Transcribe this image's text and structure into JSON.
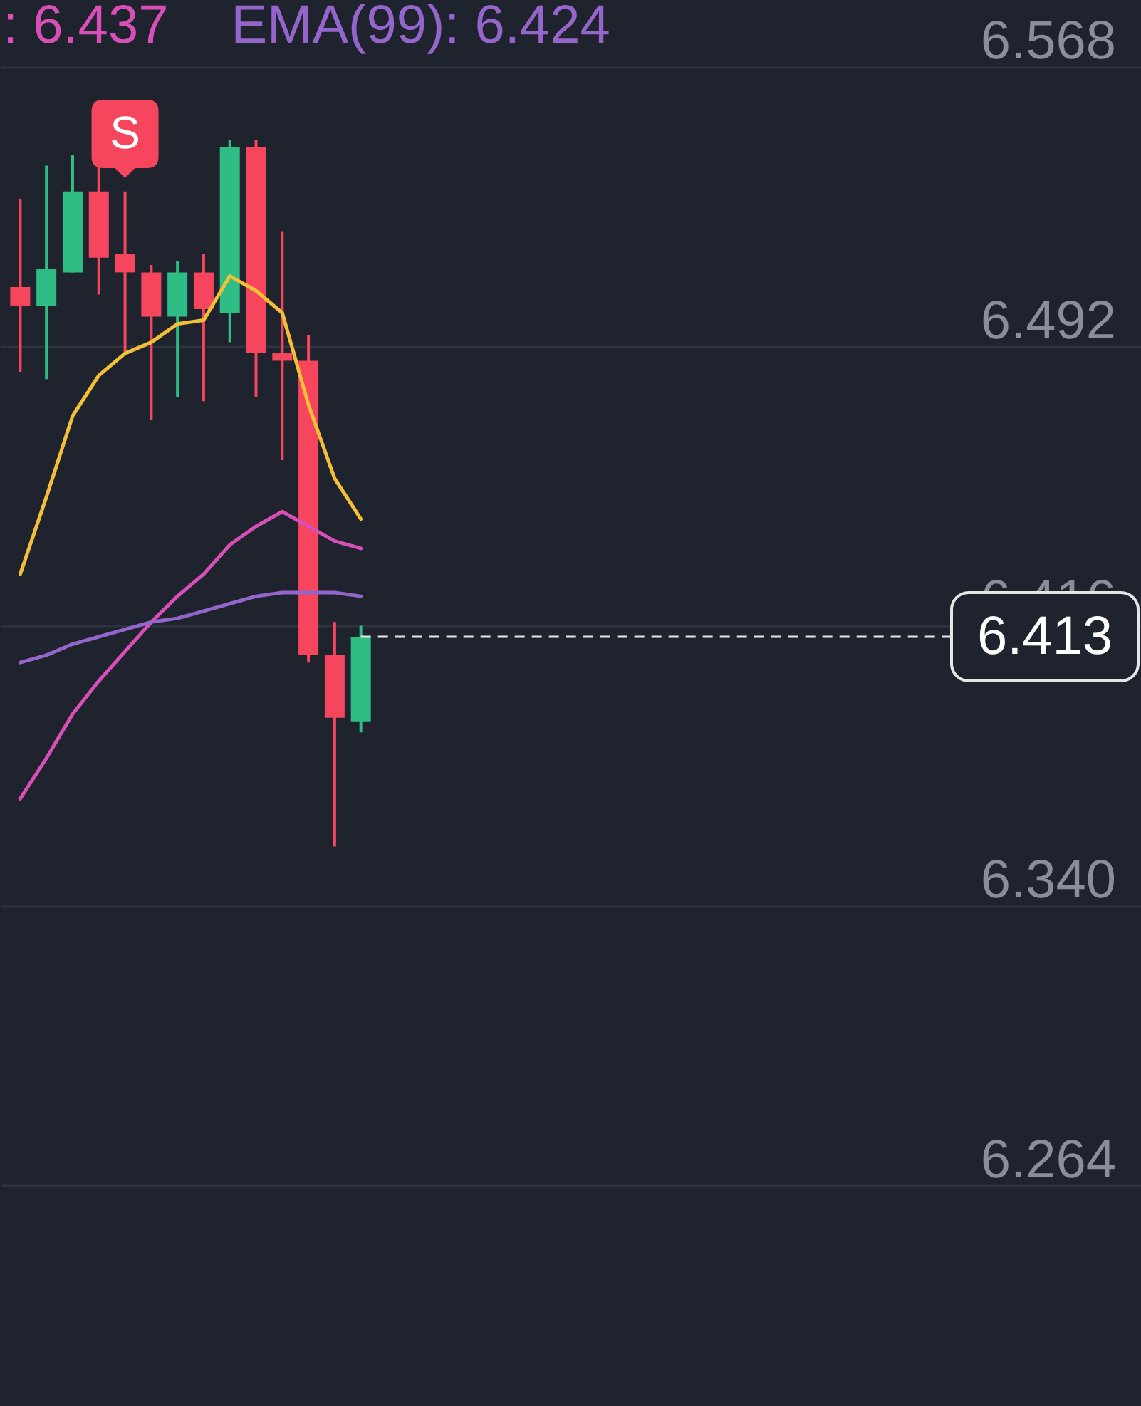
{
  "chart_data": {
    "type": "candlestick",
    "categories": [
      null,
      null,
      null,
      null,
      null,
      null,
      null,
      null,
      null,
      null,
      null,
      null,
      null,
      null,
      null,
      null,
      null,
      null,
      null,
      null,
      null,
      null,
      null,
      null,
      null,
      null,
      null,
      null,
      null,
      null,
      null,
      null,
      null,
      null,
      null,
      null,
      null,
      null,
      null,
      null,
      null,
      null,
      null
    ],
    "ohlc": [
      [
        6.508,
        6.532,
        6.485,
        6.503
      ],
      [
        6.503,
        6.541,
        6.483,
        6.513
      ],
      [
        6.512,
        6.544,
        6.512,
        6.534
      ],
      [
        6.534,
        6.541,
        6.506,
        6.516
      ],
      [
        6.517,
        6.534,
        6.49,
        6.512
      ],
      [
        6.512,
        6.514,
        6.472,
        6.5
      ],
      [
        6.5,
        6.515,
        6.478,
        6.512
      ],
      [
        6.512,
        6.517,
        6.477,
        6.502
      ],
      [
        6.501,
        6.548,
        6.493,
        6.546
      ],
      [
        6.546,
        6.548,
        6.478,
        6.49
      ],
      [
        6.49,
        6.523,
        6.461,
        6.488
      ],
      [
        6.488,
        6.495,
        6.406,
        6.408
      ],
      [
        6.408,
        6.417,
        6.356,
        6.391
      ],
      [
        6.39,
        6.416,
        6.387,
        6.413
      ],
      null,
      null,
      null,
      null,
      null,
      null,
      null,
      null,
      null,
      null,
      null,
      null,
      null,
      null,
      null,
      null,
      null,
      null,
      null,
      null,
      null,
      null,
      null,
      null,
      null,
      null,
      null,
      null,
      null
    ],
    "colors": [
      "#f6465d",
      "#2ebd85",
      "#2ebd85",
      "#f6465d",
      "#f6465d",
      "#f6465d",
      "#2ebd85",
      "#f6465d",
      "#2ebd85",
      "#f6465d",
      "#f6465d",
      "#f6465d",
      "#f6465d",
      "#2ebd85",
      null,
      null,
      null,
      null,
      null,
      null,
      null,
      null,
      null,
      null,
      null,
      null,
      null,
      null,
      null,
      null,
      null,
      null,
      null,
      null,
      null,
      null,
      null,
      null,
      null,
      null,
      null,
      null,
      null
    ],
    "series": [
      {
        "type": "line",
        "color": "#f2bf36",
        "values": [
          6.43,
          6.451,
          6.473,
          6.484,
          6.49,
          6.493,
          6.498,
          6.499,
          6.511,
          6.507,
          6.501,
          6.476,
          6.456,
          6.445,
          null,
          null,
          null,
          null,
          null,
          null,
          null,
          null,
          null,
          null,
          null,
          null,
          null,
          null,
          null,
          null,
          null,
          null,
          null,
          null,
          null,
          null,
          null,
          null,
          null,
          null,
          null,
          null,
          null
        ]
      },
      {
        "type": "line",
        "name": ": 6.437",
        "color": "#d94fb8",
        "values": [
          6.369,
          6.38,
          6.392,
          6.401,
          6.409,
          6.417,
          6.424,
          6.43,
          6.438,
          6.443,
          6.447,
          6.443,
          6.439,
          6.437,
          null,
          null,
          null,
          null,
          null,
          null,
          null,
          null,
          null,
          null,
          null,
          null,
          null,
          null,
          null,
          null,
          null,
          null,
          null,
          null,
          null,
          null,
          null,
          null,
          null,
          null,
          null,
          null,
          null
        ]
      },
      {
        "type": "line",
        "name": "EMA(99): 6.424",
        "color": "#9466cc",
        "values": [
          6.406,
          6.408,
          6.411,
          6.413,
          6.415,
          6.417,
          6.418,
          6.42,
          6.422,
          6.424,
          6.425,
          6.425,
          6.425,
          6.424,
          null,
          null,
          null,
          null,
          null,
          null,
          null,
          null,
          null,
          null,
          null,
          null,
          null,
          null,
          null,
          null,
          null,
          null,
          null,
          null,
          null,
          null,
          null,
          null,
          null,
          null,
          null,
          null,
          null
        ]
      }
    ],
    "ylim": [
      6.204,
      6.586
    ],
    "yticks": [
      6.568,
      6.492,
      6.416,
      {
        "value": 6.34,
        "label": "6.340"
      },
      6.264
    ],
    "grid": "y",
    "tick_labels": "y",
    "legend": "top left",
    "ref_lines": [
      {
        "axis": "y",
        "value": 6.413,
        "label": "6.413",
        "color": "#e6e6e6",
        "line_style": "dashed"
      }
    ],
    "annotations": [
      "S"
    ]
  }
}
